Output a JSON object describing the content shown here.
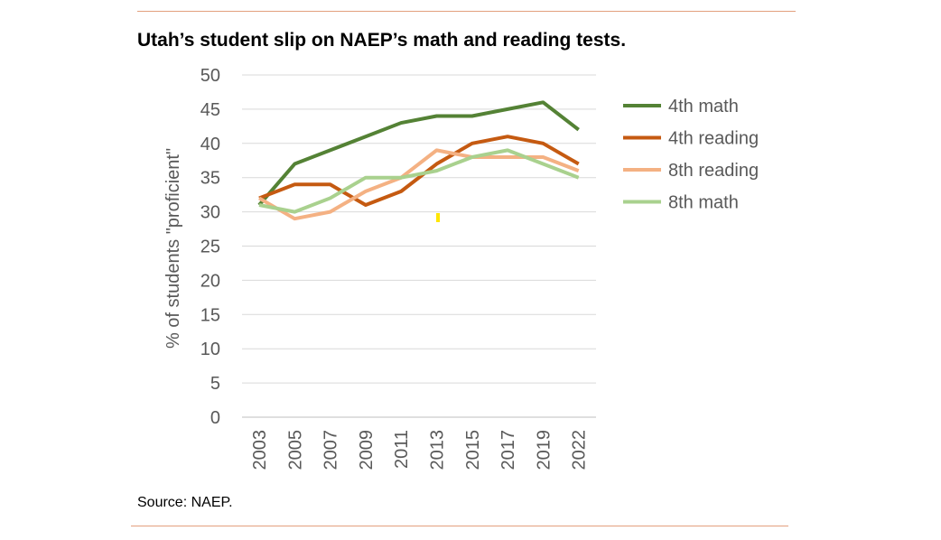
{
  "title": "Utah’s student slip on NAEP’s math and reading tests.",
  "source": "Source: NAEP.",
  "chart_data": {
    "type": "line",
    "title": "Utah’s student slip on NAEP’s math and reading tests.",
    "xlabel": "",
    "ylabel": "% of students \"proficient\"",
    "ylim": [
      0,
      50
    ],
    "yticks": [
      0,
      5,
      10,
      15,
      20,
      25,
      30,
      35,
      40,
      45,
      50
    ],
    "categories": [
      "2003",
      "2005",
      "2007",
      "2009",
      "2011",
      "2013",
      "2015",
      "2017",
      "2019",
      "2022"
    ],
    "grid": true,
    "legend": "right",
    "series": [
      {
        "name": "4th math",
        "color": "#548235",
        "values": [
          31,
          37,
          39,
          41,
          43,
          44,
          44,
          45,
          46,
          42
        ]
      },
      {
        "name": "4th reading",
        "color": "#c55a11",
        "values": [
          32,
          34,
          34,
          31,
          33,
          37,
          40,
          41,
          40,
          37
        ]
      },
      {
        "name": "8th reading",
        "color": "#f4b183",
        "values": [
          32,
          29,
          30,
          33,
          35,
          39,
          38,
          38,
          38,
          36
        ]
      },
      {
        "name": "8th math",
        "color": "#a9d18e",
        "values": [
          31,
          30,
          32,
          35,
          35,
          36,
          38,
          39,
          37,
          35
        ]
      }
    ]
  }
}
